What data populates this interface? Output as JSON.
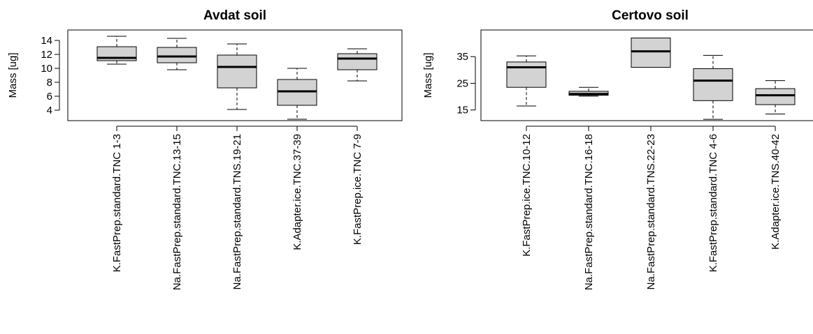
{
  "chart_data": [
    {
      "type": "boxplot",
      "title": "Avdat soil",
      "ylabel": "Mass [ug]",
      "ylim": [
        2.5,
        15.5
      ],
      "yticks": [
        4,
        6,
        8,
        10,
        12,
        14
      ],
      "fill": "#d3d3d3",
      "categories": [
        "K.FastPrep.standard.TNC 1-3",
        "Na.FastPrep.standard.TNC.13-15",
        "Na.FastPrep.standard.TNS.19-21",
        "K.Adapter.ice.TNC.37-39",
        "K.FastPrep.ice.TNC 7-9"
      ],
      "boxes": [
        {
          "min": 10.6,
          "q1": 11.1,
          "median": 11.5,
          "q3": 13.1,
          "max": 14.6
        },
        {
          "min": 9.8,
          "q1": 10.8,
          "median": 11.7,
          "q3": 13.0,
          "max": 14.3
        },
        {
          "min": 4.1,
          "q1": 7.2,
          "median": 10.2,
          "q3": 11.9,
          "max": 13.5
        },
        {
          "min": 2.7,
          "q1": 4.7,
          "median": 6.7,
          "q3": 8.4,
          "max": 10.0
        },
        {
          "min": 8.2,
          "q1": 9.8,
          "median": 11.4,
          "q3": 12.1,
          "max": 12.8
        }
      ]
    },
    {
      "type": "boxplot",
      "title": "Certovo soil",
      "ylabel": "Mass [ug]",
      "ylim": [
        11,
        45
      ],
      "yticks": [
        15,
        25,
        35
      ],
      "fill": "#d3d3d3",
      "categories": [
        "K.FastPrep.ice.TNC.10-12",
        "Na.FastPrep.standard.TNC.16-18",
        "Na.FastPrep.standard.TNS.22-23",
        "K.FastPrep.standard.TNC 4-6",
        "K.Adapter.ice.TNS.40-42"
      ],
      "boxes": [
        {
          "min": 16.5,
          "q1": 23.5,
          "median": 31.0,
          "q3": 33.0,
          "max": 35.3
        },
        {
          "min": 20.2,
          "q1": 20.5,
          "median": 21.0,
          "q3": 22.0,
          "max": 23.5
        },
        {
          "min": 31.0,
          "q1": 31.0,
          "median": 37.0,
          "q3": 42.0,
          "max": 42.0
        },
        {
          "min": 11.5,
          "q1": 18.5,
          "median": 26.0,
          "q3": 30.5,
          "max": 35.5
        },
        {
          "min": 13.5,
          "q1": 17.0,
          "median": 20.5,
          "q3": 23.0,
          "max": 26.0
        }
      ]
    }
  ]
}
